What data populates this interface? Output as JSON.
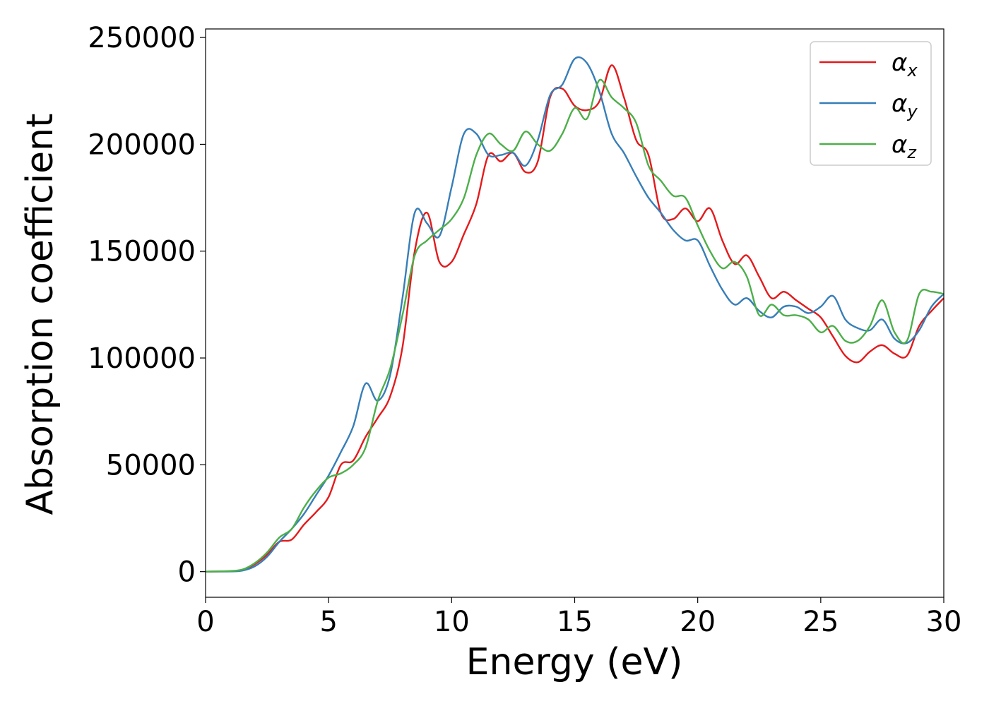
{
  "chart_data": {
    "type": "line",
    "xlabel": "Energy (eV)",
    "ylabel": "Absorption coefficient",
    "xlim": [
      0,
      30
    ],
    "ylim": [
      -12000,
      254000
    ],
    "xticks": [
      0,
      5,
      10,
      15,
      20,
      25,
      30
    ],
    "xtick_labels": [
      "0",
      "5",
      "10",
      "15",
      "20",
      "25",
      "30"
    ],
    "yticks": [
      0,
      50000,
      100000,
      150000,
      200000,
      250000
    ],
    "ytick_labels": [
      "0",
      "50000",
      "100000",
      "150000",
      "200000",
      "250000"
    ],
    "grid": false,
    "legend_position": "top-right",
    "series": [
      {
        "name": "α",
        "subscript": "x",
        "color": "#e41a1c",
        "points": [
          [
            0,
            0
          ],
          [
            1,
            200
          ],
          [
            1.5,
            800
          ],
          [
            2,
            3500
          ],
          [
            2.5,
            8000
          ],
          [
            3,
            14000
          ],
          [
            3.5,
            15000
          ],
          [
            4,
            22000
          ],
          [
            4.5,
            28000
          ],
          [
            5,
            35000
          ],
          [
            5.5,
            50000
          ],
          [
            6,
            52000
          ],
          [
            6.5,
            63000
          ],
          [
            7,
            72000
          ],
          [
            7.5,
            82000
          ],
          [
            8,
            105000
          ],
          [
            8.5,
            150000
          ],
          [
            9,
            168000
          ],
          [
            9.5,
            145000
          ],
          [
            10,
            145000
          ],
          [
            10.5,
            158000
          ],
          [
            11,
            172000
          ],
          [
            11.5,
            195000
          ],
          [
            12,
            192000
          ],
          [
            12.5,
            196000
          ],
          [
            13,
            187000
          ],
          [
            13.5,
            192000
          ],
          [
            14,
            222000
          ],
          [
            14.5,
            226000
          ],
          [
            15,
            218000
          ],
          [
            15.5,
            216000
          ],
          [
            16,
            220000
          ],
          [
            16.5,
            237000
          ],
          [
            17,
            222000
          ],
          [
            17.5,
            202000
          ],
          [
            18,
            195000
          ],
          [
            18.5,
            168000
          ],
          [
            19,
            165000
          ],
          [
            19.5,
            170000
          ],
          [
            20,
            164000
          ],
          [
            20.5,
            170000
          ],
          [
            21,
            155000
          ],
          [
            21.5,
            144000
          ],
          [
            22,
            148000
          ],
          [
            22.5,
            138000
          ],
          [
            23,
            128000
          ],
          [
            23.5,
            131000
          ],
          [
            24,
            127000
          ],
          [
            24.5,
            123000
          ],
          [
            25,
            119000
          ],
          [
            25.5,
            110000
          ],
          [
            26,
            101000
          ],
          [
            26.5,
            98000
          ],
          [
            27,
            103000
          ],
          [
            27.5,
            106000
          ],
          [
            28,
            102000
          ],
          [
            28.5,
            101000
          ],
          [
            29,
            115000
          ],
          [
            29.5,
            122000
          ],
          [
            30,
            128000
          ]
        ]
      },
      {
        "name": "α",
        "subscript": "y",
        "color": "#377eb8",
        "points": [
          [
            0,
            0
          ],
          [
            1,
            100
          ],
          [
            1.5,
            500
          ],
          [
            2,
            2500
          ],
          [
            2.5,
            7000
          ],
          [
            3,
            14000
          ],
          [
            3.5,
            20000
          ],
          [
            4,
            27000
          ],
          [
            4.5,
            36000
          ],
          [
            5,
            45000
          ],
          [
            5.5,
            56000
          ],
          [
            6,
            68000
          ],
          [
            6.5,
            88000
          ],
          [
            7,
            80000
          ],
          [
            7.5,
            92000
          ],
          [
            8,
            128000
          ],
          [
            8.5,
            168000
          ],
          [
            9,
            163000
          ],
          [
            9.5,
            157000
          ],
          [
            10,
            180000
          ],
          [
            10.5,
            205000
          ],
          [
            11,
            205000
          ],
          [
            11.5,
            195000
          ],
          [
            12,
            195000
          ],
          [
            12.5,
            196000
          ],
          [
            13,
            190000
          ],
          [
            13.5,
            202000
          ],
          [
            14,
            223000
          ],
          [
            14.5,
            228000
          ],
          [
            15,
            240000
          ],
          [
            15.5,
            238000
          ],
          [
            16,
            225000
          ],
          [
            16.5,
            205000
          ],
          [
            17,
            196000
          ],
          [
            17.5,
            185000
          ],
          [
            18,
            175000
          ],
          [
            18.5,
            168000
          ],
          [
            19,
            160000
          ],
          [
            19.5,
            155000
          ],
          [
            20,
            155000
          ],
          [
            20.5,
            143000
          ],
          [
            21,
            132000
          ],
          [
            21.5,
            125000
          ],
          [
            22,
            128000
          ],
          [
            22.5,
            122000
          ],
          [
            23,
            119000
          ],
          [
            23.5,
            124000
          ],
          [
            24,
            124000
          ],
          [
            24.5,
            121000
          ],
          [
            25,
            124000
          ],
          [
            25.5,
            129000
          ],
          [
            26,
            118000
          ],
          [
            26.5,
            114000
          ],
          [
            27,
            113000
          ],
          [
            27.5,
            118000
          ],
          [
            28,
            109000
          ],
          [
            28.5,
            107000
          ],
          [
            29,
            113000
          ],
          [
            29.5,
            124000
          ],
          [
            30,
            130000
          ]
        ]
      },
      {
        "name": "α",
        "subscript": "z",
        "color": "#4daf4a",
        "points": [
          [
            0,
            0
          ],
          [
            1,
            300
          ],
          [
            1.5,
            1000
          ],
          [
            2,
            4000
          ],
          [
            2.5,
            9000
          ],
          [
            3,
            16000
          ],
          [
            3.5,
            20000
          ],
          [
            4,
            30000
          ],
          [
            4.5,
            38000
          ],
          [
            5,
            44000
          ],
          [
            5.5,
            46000
          ],
          [
            6,
            50000
          ],
          [
            6.5,
            58000
          ],
          [
            7,
            80000
          ],
          [
            7.5,
            95000
          ],
          [
            8,
            120000
          ],
          [
            8.5,
            148000
          ],
          [
            9,
            155000
          ],
          [
            9.5,
            160000
          ],
          [
            10,
            165000
          ],
          [
            10.5,
            175000
          ],
          [
            11,
            195000
          ],
          [
            11.5,
            205000
          ],
          [
            12,
            200000
          ],
          [
            12.5,
            197000
          ],
          [
            13,
            206000
          ],
          [
            13.5,
            200000
          ],
          [
            14,
            197000
          ],
          [
            14.5,
            205000
          ],
          [
            15,
            217000
          ],
          [
            15.5,
            212000
          ],
          [
            16,
            230000
          ],
          [
            16.5,
            222000
          ],
          [
            17,
            217000
          ],
          [
            17.5,
            210000
          ],
          [
            18,
            190000
          ],
          [
            18.5,
            183000
          ],
          [
            19,
            176000
          ],
          [
            19.5,
            175000
          ],
          [
            20,
            162000
          ],
          [
            20.5,
            150000
          ],
          [
            21,
            142000
          ],
          [
            21.5,
            145000
          ],
          [
            22,
            138000
          ],
          [
            22.5,
            120000
          ],
          [
            23,
            125000
          ],
          [
            23.5,
            120000
          ],
          [
            24,
            120000
          ],
          [
            24.5,
            118000
          ],
          [
            25,
            112000
          ],
          [
            25.5,
            115000
          ],
          [
            26,
            108000
          ],
          [
            26.5,
            108000
          ],
          [
            27,
            115000
          ],
          [
            27.5,
            127000
          ],
          [
            28,
            112000
          ],
          [
            28.5,
            108000
          ],
          [
            29,
            130000
          ],
          [
            29.5,
            131000
          ],
          [
            30,
            130000
          ]
        ]
      }
    ]
  }
}
